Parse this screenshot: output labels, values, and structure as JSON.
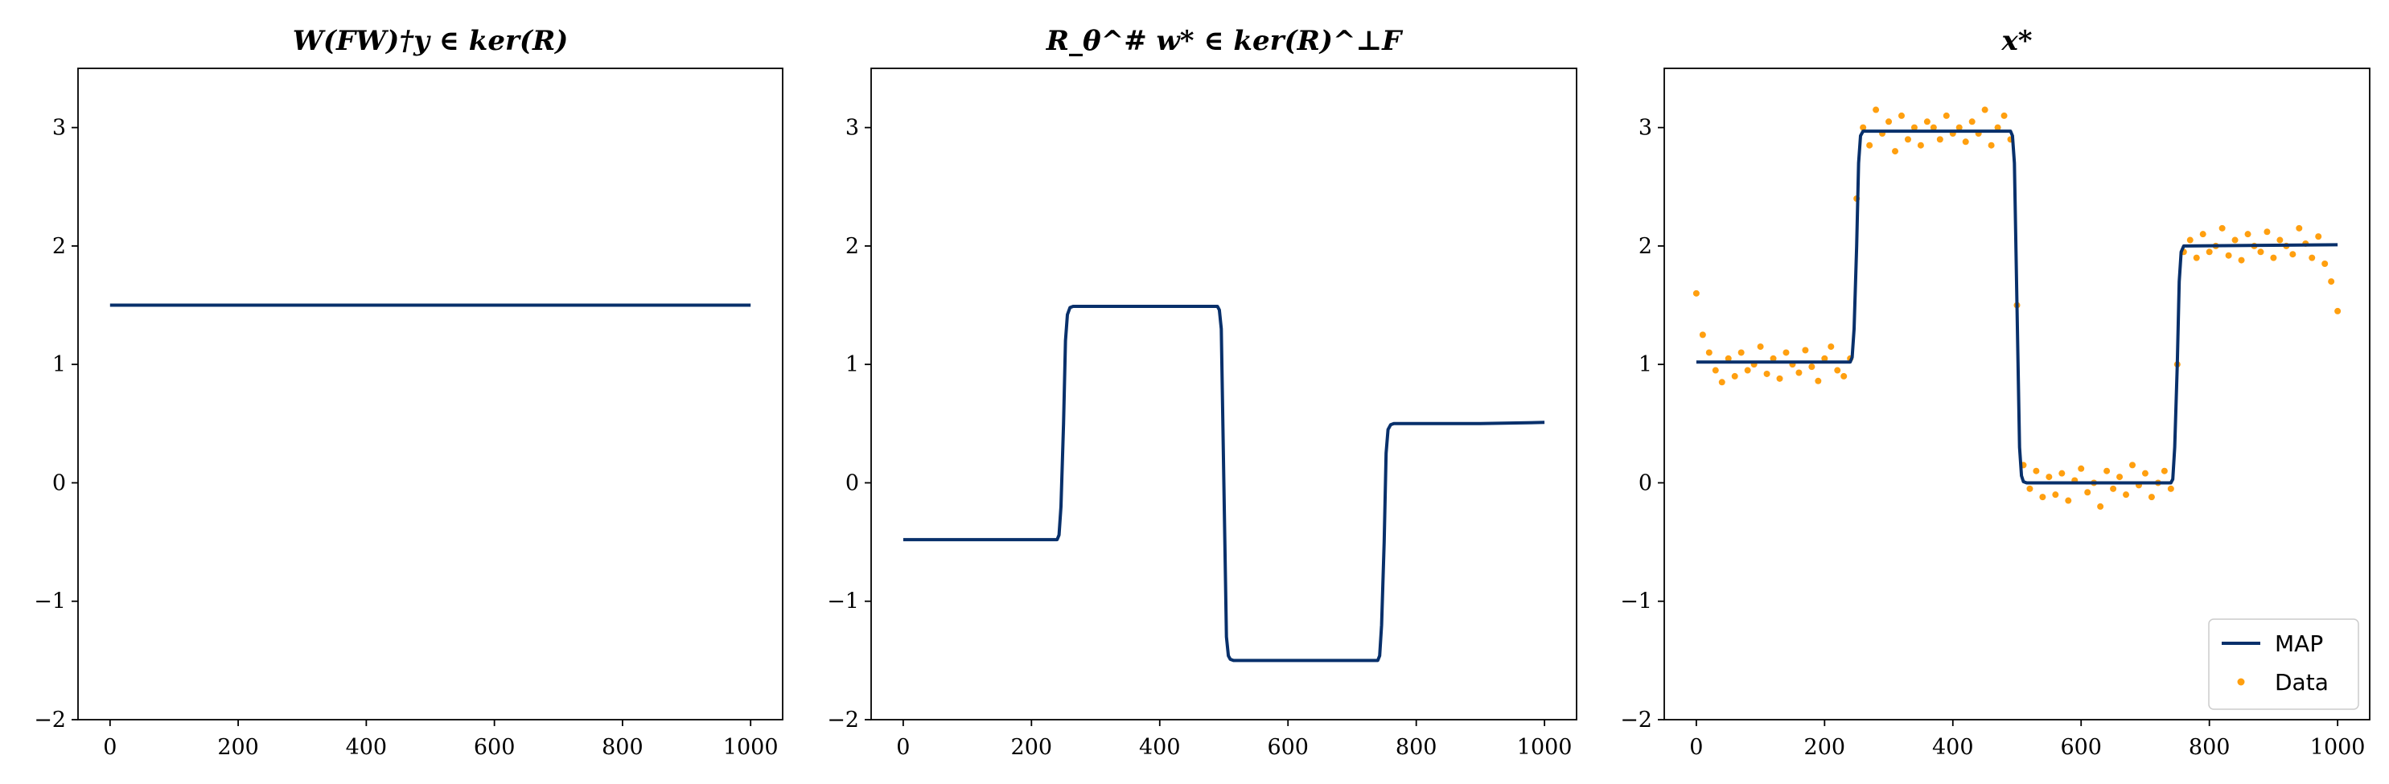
{
  "chart_data": [
    {
      "type": "line",
      "title": "W(FW)†y ∈ ker(R)",
      "xlabel": "",
      "ylabel": "",
      "xlim": [
        -50,
        1050
      ],
      "ylim": [
        -2,
        3.5
      ],
      "xticks": [
        0,
        200,
        400,
        600,
        800,
        1000
      ],
      "yticks": [
        -2,
        -1,
        0,
        1,
        2,
        3
      ],
      "xtick_labels": [
        "0",
        "200",
        "400",
        "600",
        "800",
        "1000"
      ],
      "ytick_labels": [
        "−2",
        "−1",
        "0",
        "1",
        "2",
        "3"
      ],
      "grid": false,
      "series": [
        {
          "color": "#08306b",
          "x": [
            0,
            1000
          ],
          "y": [
            1.5,
            1.5
          ]
        }
      ]
    },
    {
      "type": "line",
      "title": "R_θ^# w* ∈ ker(R)^⊥F",
      "xlabel": "",
      "ylabel": "",
      "xlim": [
        -50,
        1050
      ],
      "ylim": [
        -2,
        3.5
      ],
      "xticks": [
        0,
        200,
        400,
        600,
        800,
        1000
      ],
      "yticks": [
        -2,
        -1,
        0,
        1,
        2,
        3
      ],
      "xtick_labels": [
        "0",
        "200",
        "400",
        "600",
        "800",
        "1000"
      ],
      "ytick_labels": [
        "−2",
        "−1",
        "0",
        "1",
        "2",
        "3"
      ],
      "grid": false,
      "series": [
        {
          "color": "#08306b",
          "x": [
            0,
            240,
            243,
            246,
            250,
            253,
            256,
            260,
            265,
            490,
            493,
            496,
            500,
            504,
            507,
            510,
            515,
            740,
            743,
            746,
            750,
            753,
            756,
            760,
            765,
            900,
            1000
          ],
          "y": [
            -0.48,
            -0.48,
            -0.44,
            -0.2,
            0.5,
            1.2,
            1.42,
            1.48,
            1.49,
            1.49,
            1.46,
            1.3,
            0.0,
            -1.3,
            -1.46,
            -1.49,
            -1.5,
            -1.5,
            -1.46,
            -1.2,
            -0.5,
            0.25,
            0.45,
            0.49,
            0.5,
            0.5,
            0.51
          ]
        }
      ]
    },
    {
      "type": "line",
      "title": "x*",
      "xlabel": "",
      "ylabel": "",
      "xlim": [
        -50,
        1050
      ],
      "ylim": [
        -2,
        3.5
      ],
      "xticks": [
        0,
        200,
        400,
        600,
        800,
        1000
      ],
      "yticks": [
        -2,
        -1,
        0,
        1,
        2,
        3
      ],
      "xtick_labels": [
        "0",
        "200",
        "400",
        "600",
        "800",
        "1000"
      ],
      "ytick_labels": [
        "−2",
        "−1",
        "0",
        "1",
        "2",
        "3"
      ],
      "grid": false,
      "legend": {
        "position": "bottom-right",
        "entries": [
          {
            "label": "MAP",
            "kind": "line",
            "color": "#08306b"
          },
          {
            "label": "Data",
            "kind": "marker",
            "color": "#ff9f0f"
          }
        ]
      },
      "series": [
        {
          "name": "MAP",
          "kind": "line",
          "color": "#08306b",
          "x": [
            0,
            240,
            243,
            246,
            250,
            253,
            256,
            260,
            265,
            490,
            493,
            496,
            500,
            504,
            507,
            510,
            515,
            740,
            743,
            746,
            750,
            753,
            756,
            760,
            765,
            1000
          ],
          "y": [
            1.02,
            1.02,
            1.06,
            1.3,
            2.0,
            2.7,
            2.93,
            2.97,
            2.97,
            2.97,
            2.93,
            2.7,
            1.5,
            0.3,
            0.06,
            0.01,
            0.0,
            0.0,
            0.03,
            0.3,
            1.0,
            1.7,
            1.95,
            2.0,
            2.0,
            2.01
          ]
        },
        {
          "name": "Data",
          "kind": "scatter",
          "color": "#ff9f0f",
          "x": [
            0,
            10,
            20,
            30,
            40,
            50,
            60,
            70,
            80,
            90,
            100,
            110,
            120,
            130,
            140,
            150,
            160,
            170,
            180,
            190,
            200,
            210,
            220,
            230,
            240,
            250,
            260,
            270,
            280,
            290,
            300,
            310,
            320,
            330,
            340,
            350,
            360,
            370,
            380,
            390,
            400,
            410,
            420,
            430,
            440,
            450,
            460,
            470,
            480,
            490,
            500,
            510,
            520,
            530,
            540,
            550,
            560,
            570,
            580,
            590,
            600,
            610,
            620,
            630,
            640,
            650,
            660,
            670,
            680,
            690,
            700,
            710,
            720,
            730,
            740,
            750,
            760,
            770,
            780,
            790,
            800,
            810,
            820,
            830,
            840,
            850,
            860,
            870,
            880,
            890,
            900,
            910,
            920,
            930,
            940,
            950,
            960,
            970,
            980,
            990,
            1000
          ],
          "y": [
            1.6,
            1.25,
            1.1,
            0.95,
            0.85,
            1.05,
            0.9,
            1.1,
            0.95,
            1.0,
            1.15,
            0.92,
            1.05,
            0.88,
            1.1,
            1.0,
            0.93,
            1.12,
            0.98,
            0.86,
            1.05,
            1.15,
            0.95,
            0.9,
            1.05,
            2.4,
            3.0,
            2.85,
            3.15,
            2.95,
            3.05,
            2.8,
            3.1,
            2.9,
            3.0,
            2.85,
            3.05,
            3.0,
            2.9,
            3.1,
            2.95,
            3.0,
            2.88,
            3.05,
            2.95,
            3.15,
            2.85,
            3.0,
            3.1,
            2.9,
            1.5,
            0.15,
            -0.05,
            0.1,
            -0.12,
            0.05,
            -0.1,
            0.08,
            -0.15,
            0.02,
            0.12,
            -0.08,
            0.0,
            -0.2,
            0.1,
            -0.05,
            0.05,
            -0.1,
            0.15,
            -0.02,
            0.08,
            -0.12,
            0.0,
            0.1,
            -0.05,
            1.0,
            1.95,
            2.05,
            1.9,
            2.1,
            1.95,
            2.0,
            2.15,
            1.92,
            2.05,
            1.88,
            2.1,
            2.0,
            1.95,
            2.12,
            1.9,
            2.05,
            2.0,
            1.93,
            2.15,
            2.02,
            1.9,
            2.08,
            1.85,
            1.7,
            1.45
          ]
        }
      ]
    }
  ]
}
